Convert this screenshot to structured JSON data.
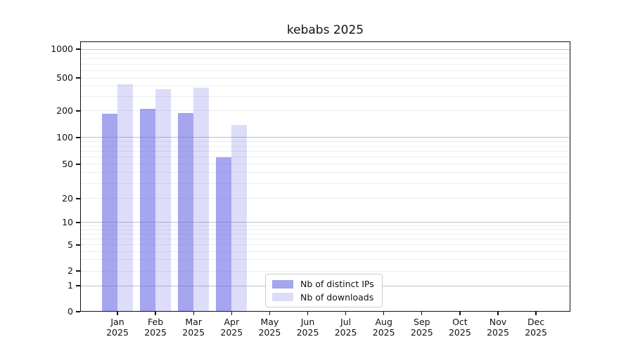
{
  "chart_data": {
    "type": "bar",
    "title": "kebabs 2025",
    "categories": [
      "Jan 2025",
      "Feb 2025",
      "Mar 2025",
      "Apr 2025",
      "May 2025",
      "Jun 2025",
      "Jul 2025",
      "Aug 2025",
      "Sep 2025",
      "Oct 2025",
      "Nov 2025",
      "Dec 2025"
    ],
    "series": [
      {
        "name": "Nb of distinct IPs",
        "color": "#6464E694",
        "values": [
          185,
          210,
          190,
          60,
          null,
          null,
          null,
          null,
          null,
          null,
          null,
          null
        ]
      },
      {
        "name": "Nb of downloads",
        "color": "#6464E638",
        "values": [
          420,
          365,
          380,
          140,
          null,
          null,
          null,
          null,
          null,
          null,
          null,
          null
        ]
      }
    ],
    "y_ticks": [
      0,
      1,
      2,
      5,
      10,
      20,
      50,
      100,
      200,
      500,
      1000
    ],
    "y_scale": "symlog",
    "ylim": [
      0,
      1070
    ],
    "xlabel": "",
    "ylabel": "",
    "grid": "horizontal major and minor gridlines",
    "legend_position": "inside bottom-center",
    "axis_color": "#111111",
    "grid_minor_color": "#ededed",
    "grid_major_color": "#c2c2c2",
    "background_color": "#ffffff"
  }
}
